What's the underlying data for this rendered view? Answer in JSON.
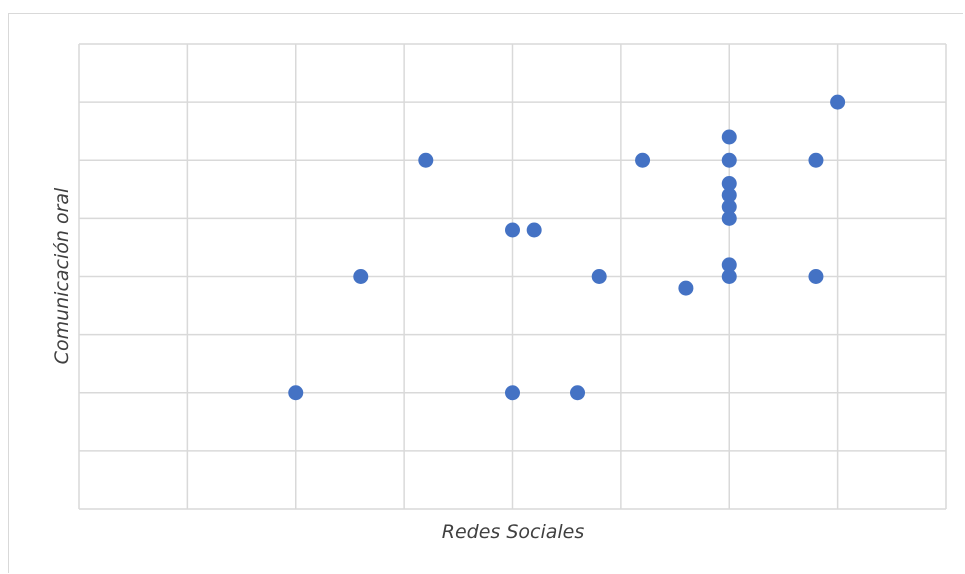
{
  "chart_data": {
    "type": "scatter",
    "title": "",
    "xlabel": "Redes Sociales",
    "ylabel": "Comunicación oral",
    "xlim": [
      0,
      8
    ],
    "ylim": [
      0,
      8
    ],
    "grid": true,
    "legend": "none",
    "series": [
      {
        "color": "#4472C4",
        "points": [
          {
            "x": 2.0,
            "y": 2.0
          },
          {
            "x": 2.6,
            "y": 4.0
          },
          {
            "x": 3.2,
            "y": 6.0
          },
          {
            "x": 4.0,
            "y": 4.8
          },
          {
            "x": 4.2,
            "y": 4.8
          },
          {
            "x": 4.0,
            "y": 2.0
          },
          {
            "x": 4.6,
            "y": 2.0
          },
          {
            "x": 4.8,
            "y": 4.0
          },
          {
            "x": 5.2,
            "y": 6.0
          },
          {
            "x": 5.6,
            "y": 3.8
          },
          {
            "x": 6.0,
            "y": 6.4
          },
          {
            "x": 6.0,
            "y": 6.0
          },
          {
            "x": 6.0,
            "y": 5.6
          },
          {
            "x": 6.0,
            "y": 5.4
          },
          {
            "x": 6.0,
            "y": 5.2
          },
          {
            "x": 6.0,
            "y": 5.0
          },
          {
            "x": 6.0,
            "y": 4.2
          },
          {
            "x": 6.0,
            "y": 4.0
          },
          {
            "x": 6.8,
            "y": 6.0
          },
          {
            "x": 6.8,
            "y": 4.0
          },
          {
            "x": 7.0,
            "y": 7.0
          }
        ]
      }
    ]
  }
}
